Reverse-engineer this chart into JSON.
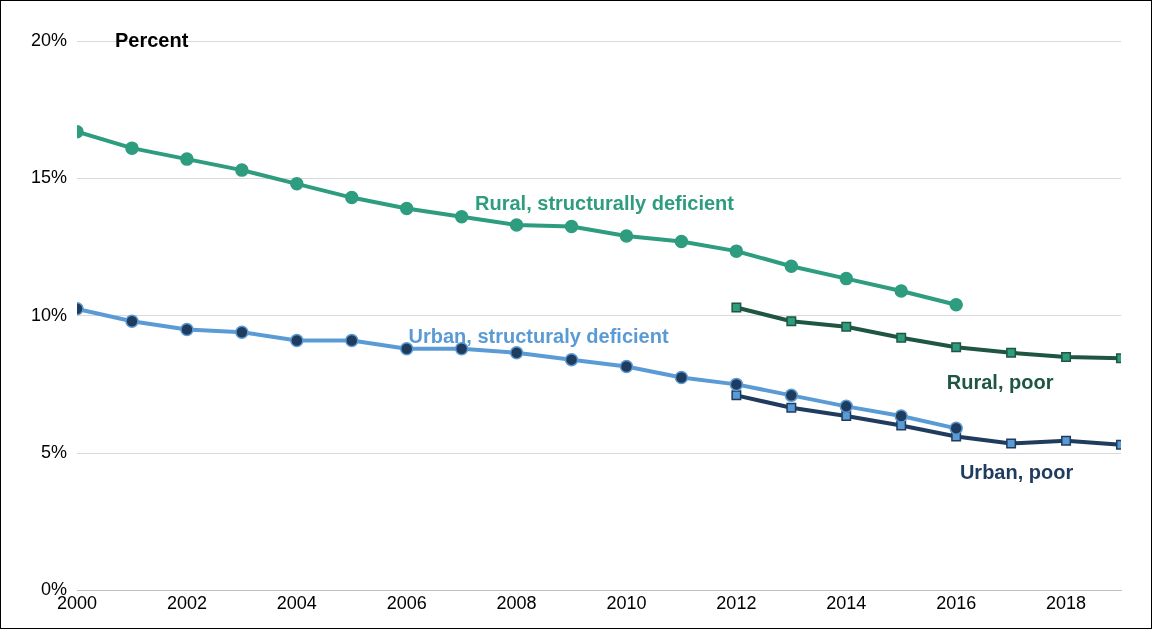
{
  "chart_data": {
    "type": "line",
    "ylabel": "Percent",
    "xlim": [
      2000,
      2019
    ],
    "xticks": [
      2000,
      2002,
      2004,
      2006,
      2008,
      2010,
      2012,
      2014,
      2016,
      2018
    ],
    "ylim": [
      0,
      20
    ],
    "yticks": [
      {
        "value": 0,
        "label": "0%"
      },
      {
        "value": 5,
        "label": "5%"
      },
      {
        "value": 10,
        "label": "10%"
      },
      {
        "value": 15,
        "label": "15%"
      },
      {
        "value": 20,
        "label": "20%"
      }
    ],
    "grid": "y",
    "legend": false,
    "series": [
      {
        "name": "Rural, structurally deficient",
        "color": "#2e9c7e",
        "marker": "circle",
        "x": [
          2000,
          2001,
          2002,
          2003,
          2004,
          2005,
          2006,
          2007,
          2008,
          2009,
          2010,
          2011,
          2012,
          2013,
          2014,
          2015,
          2016
        ],
        "values": [
          16.7,
          16.1,
          15.7,
          15.3,
          14.8,
          14.3,
          13.9,
          13.6,
          13.3,
          13.25,
          12.9,
          12.7,
          12.35,
          11.8,
          11.35,
          10.9,
          10.4
        ]
      },
      {
        "name": "Urban, structuraly deficient",
        "color": "#5b9bd5",
        "marker": "circle",
        "x": [
          2000,
          2001,
          2002,
          2003,
          2004,
          2005,
          2006,
          2007,
          2008,
          2009,
          2010,
          2011,
          2012,
          2013,
          2014,
          2015,
          2016
        ],
        "values": [
          10.25,
          9.8,
          9.5,
          9.4,
          9.1,
          9.1,
          8.8,
          8.8,
          8.65,
          8.4,
          8.15,
          7.75,
          7.5,
          7.1,
          6.7,
          6.35,
          5.9
        ]
      },
      {
        "name": "Rural, poor",
        "color": "#1e5642",
        "marker": "square",
        "x": [
          2012,
          2013,
          2014,
          2015,
          2016,
          2017,
          2018,
          2019
        ],
        "values": [
          10.3,
          9.8,
          9.6,
          9.2,
          8.85,
          8.65,
          8.5,
          8.45
        ]
      },
      {
        "name": "Urban, poor",
        "color": "#1f3b5e",
        "marker": "square",
        "x": [
          2012,
          2013,
          2014,
          2015,
          2016,
          2017,
          2018,
          2019
        ],
        "values": [
          7.1,
          6.65,
          6.35,
          6.0,
          5.6,
          5.35,
          5.45,
          5.3
        ]
      }
    ]
  }
}
